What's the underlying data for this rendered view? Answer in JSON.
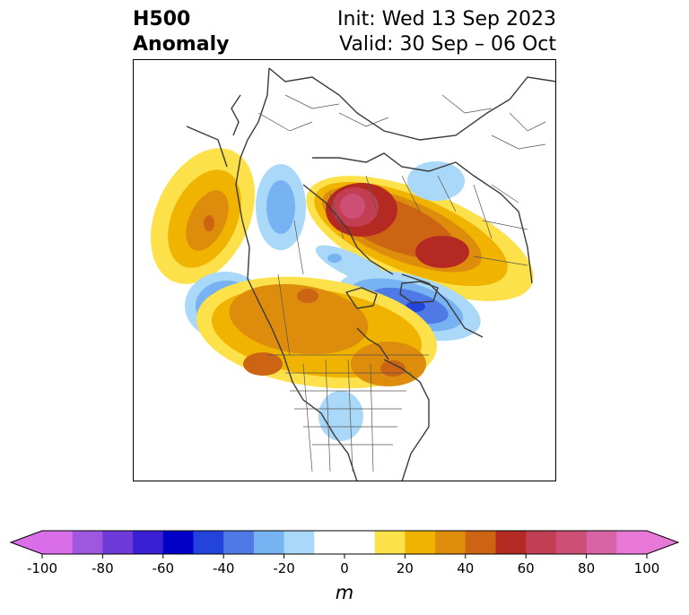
{
  "title": {
    "left_line1": "H500",
    "left_line2": "Anomaly",
    "right_line1": "Init: Wed 13 Sep 2023",
    "right_line2": "Valid: 30 Sep – 06 Oct"
  },
  "colorbar": {
    "unit_label": "m",
    "ticks": [
      "-100",
      "-80",
      "-60",
      "-40",
      "-20",
      "0",
      "20",
      "40",
      "60",
      "80",
      "100"
    ],
    "extend": "both",
    "colors": [
      "#d96ee8",
      "#a057e0",
      "#6e3ad9",
      "#3a1fd4",
      "#0000c8",
      "#2244dd",
      "#4f7ae6",
      "#77b2f2",
      "#aad8f8",
      "#ffffff",
      "#ffffff",
      "#fde14a",
      "#f0b400",
      "#de8c0c",
      "#cc6414",
      "#b42a22",
      "#c23e52",
      "#cd4f76",
      "#d964a5",
      "#e878d8"
    ]
  }
}
